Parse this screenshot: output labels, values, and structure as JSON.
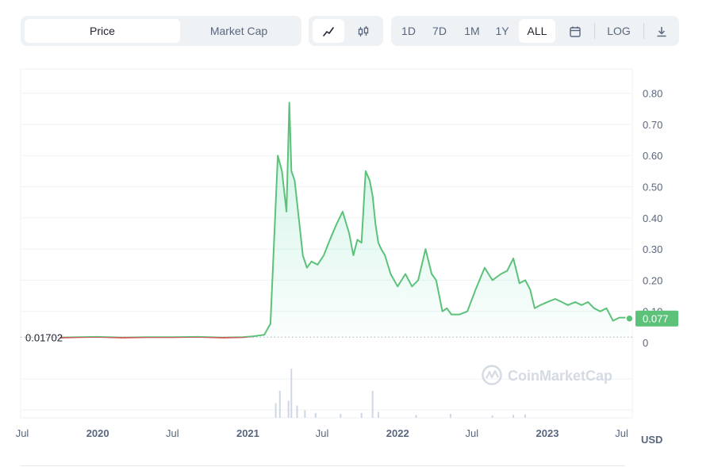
{
  "toolbar": {
    "tabs": [
      {
        "label": "Price",
        "active": true
      },
      {
        "label": "Market Cap",
        "active": false
      }
    ],
    "chart_types": [
      {
        "icon": "line-chart-icon",
        "active": true
      },
      {
        "icon": "candlestick-chart-icon",
        "active": false
      }
    ],
    "ranges": [
      {
        "label": "1D",
        "active": false
      },
      {
        "label": "7D",
        "active": false
      },
      {
        "label": "1M",
        "active": false
      },
      {
        "label": "1Y",
        "active": false
      },
      {
        "label": "ALL",
        "active": true
      }
    ],
    "calendar_icon": "calendar-icon",
    "log_label": "LOG",
    "download_icon": "download-icon"
  },
  "watermark": "CoinMarketCap",
  "colors": {
    "up": "#16c784",
    "up_line": "#5cc27a",
    "down": "#ea3943",
    "down_line": "#cf3c3c",
    "axis_text": "#58667e",
    "grid": "#eff2f5"
  },
  "chart_data": {
    "type": "area",
    "title": "",
    "xlabel": "",
    "ylabel": "",
    "currency_label": "USD",
    "baseline_label": "0.01702",
    "baseline_value": 0.01702,
    "current_price_label": "0.077",
    "current_value": 0.077,
    "ylim": [
      0,
      0.9
    ],
    "xlim": [
      "2019-07-01",
      "2023-07-25"
    ],
    "yticks": [
      "0",
      "0.10",
      "0.20",
      "0.30",
      "0.40",
      "0.50",
      "0.60",
      "0.70",
      "0.80"
    ],
    "ytick_values": [
      0,
      0.1,
      0.2,
      0.3,
      0.4,
      0.5,
      0.6,
      0.7,
      0.8
    ],
    "xticks": [
      {
        "label": "Jul",
        "date": "2019-07-01",
        "year": false
      },
      {
        "label": "2020",
        "date": "2020-01-01",
        "year": true
      },
      {
        "label": "Jul",
        "date": "2020-07-01",
        "year": false
      },
      {
        "label": "2021",
        "date": "2021-01-01",
        "year": true
      },
      {
        "label": "Jul",
        "date": "2021-07-01",
        "year": false
      },
      {
        "label": "2022",
        "date": "2022-01-01",
        "year": true
      },
      {
        "label": "Jul",
        "date": "2022-07-01",
        "year": false
      },
      {
        "label": "2023",
        "date": "2023-01-01",
        "year": true
      },
      {
        "label": "Jul",
        "date": "2023-07-01",
        "year": false
      }
    ],
    "grid": true,
    "series": [
      {
        "x": [
          "2019-10-01",
          "2019-11-15",
          "2020-01-01",
          "2020-03-01",
          "2020-05-01",
          "2020-07-01",
          "2020-09-01",
          "2020-11-01",
          "2020-12-20",
          "2021-01-15",
          "2021-02-10",
          "2021-02-25",
          "2021-03-15",
          "2021-03-25",
          "2021-04-05",
          "2021-04-12",
          "2021-04-17",
          "2021-04-25",
          "2021-05-05",
          "2021-05-15",
          "2021-05-25",
          "2021-06-05",
          "2021-06-20",
          "2021-07-05",
          "2021-07-20",
          "2021-08-05",
          "2021-08-20",
          "2021-09-05",
          "2021-09-15",
          "2021-09-25",
          "2021-10-05",
          "2021-10-15",
          "2021-10-25",
          "2021-11-01",
          "2021-11-08",
          "2021-11-15",
          "2021-11-22",
          "2021-12-01",
          "2021-12-15",
          "2022-01-01",
          "2022-01-20",
          "2022-02-05",
          "2022-02-20",
          "2022-03-10",
          "2022-03-25",
          "2022-04-05",
          "2022-04-20",
          "2022-05-01",
          "2022-05-12",
          "2022-06-01",
          "2022-06-20",
          "2022-07-10",
          "2022-08-01",
          "2022-08-20",
          "2022-09-10",
          "2022-09-25",
          "2022-10-10",
          "2022-10-25",
          "2022-11-08",
          "2022-11-20",
          "2022-12-01",
          "2022-12-15",
          "2023-01-01",
          "2023-01-20",
          "2023-02-05",
          "2023-02-20",
          "2023-03-10",
          "2023-03-25",
          "2023-04-10",
          "2023-04-25",
          "2023-05-10",
          "2023-05-25",
          "2023-06-10",
          "2023-06-25",
          "2023-07-10",
          "2023-07-20"
        ],
        "y": [
          0.016,
          0.017,
          0.018,
          0.016,
          0.017,
          0.017,
          0.018,
          0.016,
          0.017,
          0.02,
          0.025,
          0.06,
          0.6,
          0.55,
          0.42,
          0.77,
          0.55,
          0.52,
          0.4,
          0.28,
          0.24,
          0.26,
          0.25,
          0.28,
          0.33,
          0.38,
          0.42,
          0.35,
          0.28,
          0.33,
          0.32,
          0.55,
          0.52,
          0.47,
          0.38,
          0.32,
          0.3,
          0.28,
          0.22,
          0.18,
          0.22,
          0.18,
          0.2,
          0.3,
          0.22,
          0.2,
          0.1,
          0.11,
          0.09,
          0.09,
          0.1,
          0.17,
          0.24,
          0.2,
          0.22,
          0.23,
          0.27,
          0.19,
          0.2,
          0.17,
          0.11,
          0.12,
          0.13,
          0.14,
          0.13,
          0.12,
          0.13,
          0.12,
          0.13,
          0.11,
          0.1,
          0.11,
          0.07,
          0.08,
          0.08,
          0.077
        ]
      }
    ],
    "volume": {
      "x": [
        "2021-03-10",
        "2021-03-20",
        "2021-04-10",
        "2021-04-17",
        "2021-05-01",
        "2021-05-20",
        "2021-06-15",
        "2021-08-15",
        "2021-10-05",
        "2021-11-01",
        "2021-11-15",
        "2022-02-15",
        "2022-05-10",
        "2022-08-20",
        "2022-10-10",
        "2022-11-08"
      ],
      "y": [
        0.3,
        0.55,
        0.35,
        1.0,
        0.25,
        0.15,
        0.1,
        0.08,
        0.1,
        0.55,
        0.12,
        0.06,
        0.08,
        0.05,
        0.06,
        0.07
      ]
    }
  }
}
